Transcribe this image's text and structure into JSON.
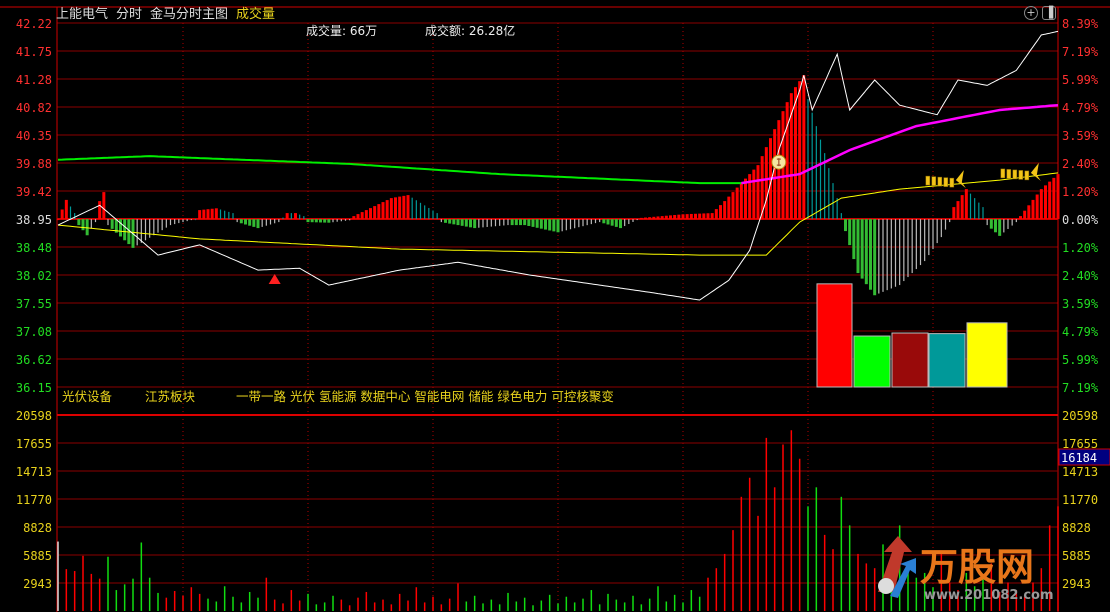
{
  "header": {
    "stock_name": "上能电气",
    "view_mode": "分时",
    "indicator_name": "金马分时主图",
    "sub_indicator": "成交量",
    "volume_label": "成交量: 66万",
    "amount_label": "成交额: 26.28亿",
    "icons": [
      "zoom-plus-icon",
      "panel-toggle-icon"
    ]
  },
  "tags": {
    "industry": "光伏设备",
    "region": "江苏板块",
    "concepts": "一带一路 光伏 氢能源 数据中心 智能电网 储能 绿色电力 可控核聚变"
  },
  "logo": {
    "text": "万股网",
    "url": "www.201082.com"
  },
  "colors": {
    "background": "#000000",
    "grid": "#8b0000",
    "border": "#d00000",
    "up": "#ff0000",
    "down": "#00ee00",
    "price_line": "#ffffff",
    "avg_line": "#ffff00",
    "ma_green": "#00ee00",
    "ma_magenta": "#ff00ff",
    "hist_fade_up": "#009999",
    "hist_fade_down": "#bbbbbb",
    "axis_volume": "#e8d21c"
  },
  "chart_data": [
    {
      "type": "line",
      "name_hidden": "",
      "x_unit": "minute of session (0-240)",
      "prev_close": 38.95,
      "ylim": [
        36.15,
        42.22
      ],
      "price_ticks": [
        "42.22",
        "41.75",
        "41.28",
        "40.82",
        "40.35",
        "39.88",
        "39.42",
        "38.95",
        "38.48",
        "38.02",
        "37.55",
        "37.08",
        "36.62",
        "36.15"
      ],
      "pct_ticks": [
        "8.39%",
        "7.19%",
        "5.99%",
        "4.79%",
        "3.59%",
        "2.40%",
        "1.20%",
        "0.00%",
        "1.20%",
        "2.40%",
        "3.59%",
        "4.79%",
        "5.99%",
        "7.19%"
      ],
      "grid": true,
      "price": [
        [
          0,
          38.85
        ],
        [
          10,
          39.18
        ],
        [
          24,
          38.35
        ],
        [
          34,
          38.52
        ],
        [
          48,
          38.1
        ],
        [
          58,
          38.13
        ],
        [
          65,
          37.85
        ],
        [
          82,
          38.1
        ],
        [
          96,
          38.23
        ],
        [
          113,
          38.02
        ],
        [
          130,
          37.85
        ],
        [
          142,
          37.73
        ],
        [
          154,
          37.6
        ],
        [
          161,
          37.93
        ],
        [
          166,
          38.43
        ],
        [
          170,
          39.27
        ],
        [
          173,
          40.1
        ],
        [
          178,
          41.1
        ],
        [
          179,
          41.35
        ],
        [
          181,
          40.77
        ],
        [
          187,
          41.7
        ],
        [
          190,
          40.77
        ],
        [
          196,
          41.27
        ],
        [
          202,
          40.85
        ],
        [
          211,
          40.69
        ],
        [
          216,
          41.27
        ],
        [
          223,
          41.18
        ],
        [
          230,
          41.43
        ],
        [
          236,
          42.02
        ],
        [
          240,
          42.08
        ]
      ],
      "avg_price": [
        [
          0,
          38.85
        ],
        [
          34,
          38.62
        ],
        [
          82,
          38.45
        ],
        [
          154,
          38.35
        ],
        [
          170,
          38.35
        ],
        [
          178,
          38.9
        ],
        [
          188,
          39.3
        ],
        [
          202,
          39.45
        ],
        [
          226,
          39.6
        ],
        [
          240,
          39.72
        ]
      ],
      "ma_green": [
        [
          0,
          39.94
        ],
        [
          22,
          40.0
        ],
        [
          70,
          39.87
        ],
        [
          106,
          39.7
        ],
        [
          154,
          39.55
        ],
        [
          164,
          39.55
        ]
      ],
      "ma_magenta": [
        [
          164,
          39.55
        ],
        [
          178,
          39.7
        ],
        [
          190,
          40.1
        ],
        [
          206,
          40.5
        ],
        [
          226,
          40.77
        ],
        [
          240,
          40.85
        ]
      ],
      "histogram": [
        [
          0,
          0
        ],
        [
          2,
          0.32
        ],
        [
          4,
          0.1
        ],
        [
          5,
          -0.1
        ],
        [
          7,
          -0.27
        ],
        [
          9,
          -0.05
        ],
        [
          10,
          0.3
        ],
        [
          11,
          0.45
        ],
        [
          12,
          -0.1
        ],
        [
          18,
          -0.48
        ],
        [
          27,
          -0.1
        ],
        [
          33,
          0
        ],
        [
          34,
          0.15
        ],
        [
          38,
          0.18
        ],
        [
          42,
          0.1
        ],
        [
          43,
          -0.05
        ],
        [
          48,
          -0.15
        ],
        [
          53,
          -0.05
        ],
        [
          55,
          0.1
        ],
        [
          57,
          0.1
        ],
        [
          59,
          0.05
        ],
        [
          60,
          -0.05
        ],
        [
          65,
          -0.06
        ],
        [
          70,
          -0.02
        ],
        [
          71,
          0.05
        ],
        [
          80,
          0.35
        ],
        [
          84,
          0.4
        ],
        [
          91,
          0.1
        ],
        [
          92,
          -0.05
        ],
        [
          100,
          -0.15
        ],
        [
          108,
          -0.1
        ],
        [
          112,
          -0.1
        ],
        [
          120,
          -0.22
        ],
        [
          130,
          -0.05
        ],
        [
          135,
          -0.15
        ],
        [
          140,
          0.02
        ],
        [
          150,
          0.08
        ],
        [
          157,
          0.1
        ],
        [
          160,
          0.3
        ],
        [
          168,
          0.9
        ],
        [
          172,
          1.5
        ],
        [
          176,
          2.1
        ],
        [
          179,
          2.4
        ],
        [
          180,
          2.0
        ],
        [
          184,
          1.1
        ],
        [
          188,
          0.1
        ],
        [
          189,
          -0.2
        ],
        [
          192,
          -0.9
        ],
        [
          196,
          -1.27
        ],
        [
          202,
          -1.1
        ],
        [
          208,
          -0.7
        ],
        [
          212,
          -0.3
        ],
        [
          214,
          -0.05
        ],
        [
          215,
          0.2
        ],
        [
          218,
          0.5
        ],
        [
          222,
          0.2
        ],
        [
          223,
          -0.1
        ],
        [
          226,
          -0.28
        ],
        [
          230,
          -0.05
        ],
        [
          231,
          0.05
        ],
        [
          236,
          0.5
        ],
        [
          240,
          0.75
        ]
      ],
      "strength_bars": [
        {
          "color": "#ff0000",
          "value": 37.87
        },
        {
          "color": "#00ff00",
          "value": 37.0
        },
        {
          "color": "#990a0a",
          "value": 37.05
        },
        {
          "color": "#009999",
          "value": 37.04
        },
        {
          "color": "#ffff00",
          "value": 37.22
        }
      ],
      "markers": [
        {
          "type": "red-triangle-icon",
          "minute": 52,
          "price": 37.95
        },
        {
          "type": "money-bag-icon",
          "minute": 173,
          "price": 39.9
        },
        {
          "type": "butterfly-icon",
          "minute": 215,
          "price": 39.6
        },
        {
          "type": "butterfly-icon",
          "minute": 233,
          "price": 39.72
        }
      ]
    },
    {
      "type": "bar",
      "x_unit": "minute of session (every 2 minutes)",
      "ylim": [
        0,
        20598
      ],
      "ticks": [
        "20598",
        "17655",
        "14713",
        "11770",
        "8828",
        "5885",
        "2943"
      ],
      "cursor_value": "16184",
      "values": [
        7300,
        4400,
        4200,
        5800,
        3900,
        3400,
        5700,
        2200,
        2800,
        3400,
        7200,
        3500,
        1900,
        1400,
        2100,
        1600,
        2500,
        1800,
        1300,
        1000,
        2600,
        1500,
        900,
        2000,
        1400,
        3500,
        1200,
        800,
        2200,
        1100,
        1800,
        700,
        900,
        1600,
        1200,
        600,
        1400,
        2000,
        900,
        1200,
        700,
        1800,
        1100,
        2500,
        900,
        1500,
        700,
        1300,
        2900,
        1000,
        1600,
        800,
        1200,
        700,
        1900,
        1000,
        1400,
        600,
        1100,
        1700,
        800,
        1500,
        900,
        1300,
        2200,
        700,
        1800,
        1200,
        900,
        1600,
        700,
        1300,
        2600,
        1000,
        1700,
        900,
        2200,
        1500,
        3500,
        4500,
        6000,
        8500,
        12000,
        14000,
        10000,
        18200,
        13000,
        17500,
        19000,
        16000,
        11000,
        13000,
        8000,
        6500,
        12000,
        9000,
        6000,
        5000,
        4500,
        7000,
        3500,
        9000,
        5000,
        3500,
        4000,
        2500,
        6000,
        3000,
        2200,
        4000,
        2600,
        3500,
        5000,
        2000,
        3000,
        2200,
        1500,
        3000,
        4500,
        9000,
        11000
      ]
    }
  ]
}
